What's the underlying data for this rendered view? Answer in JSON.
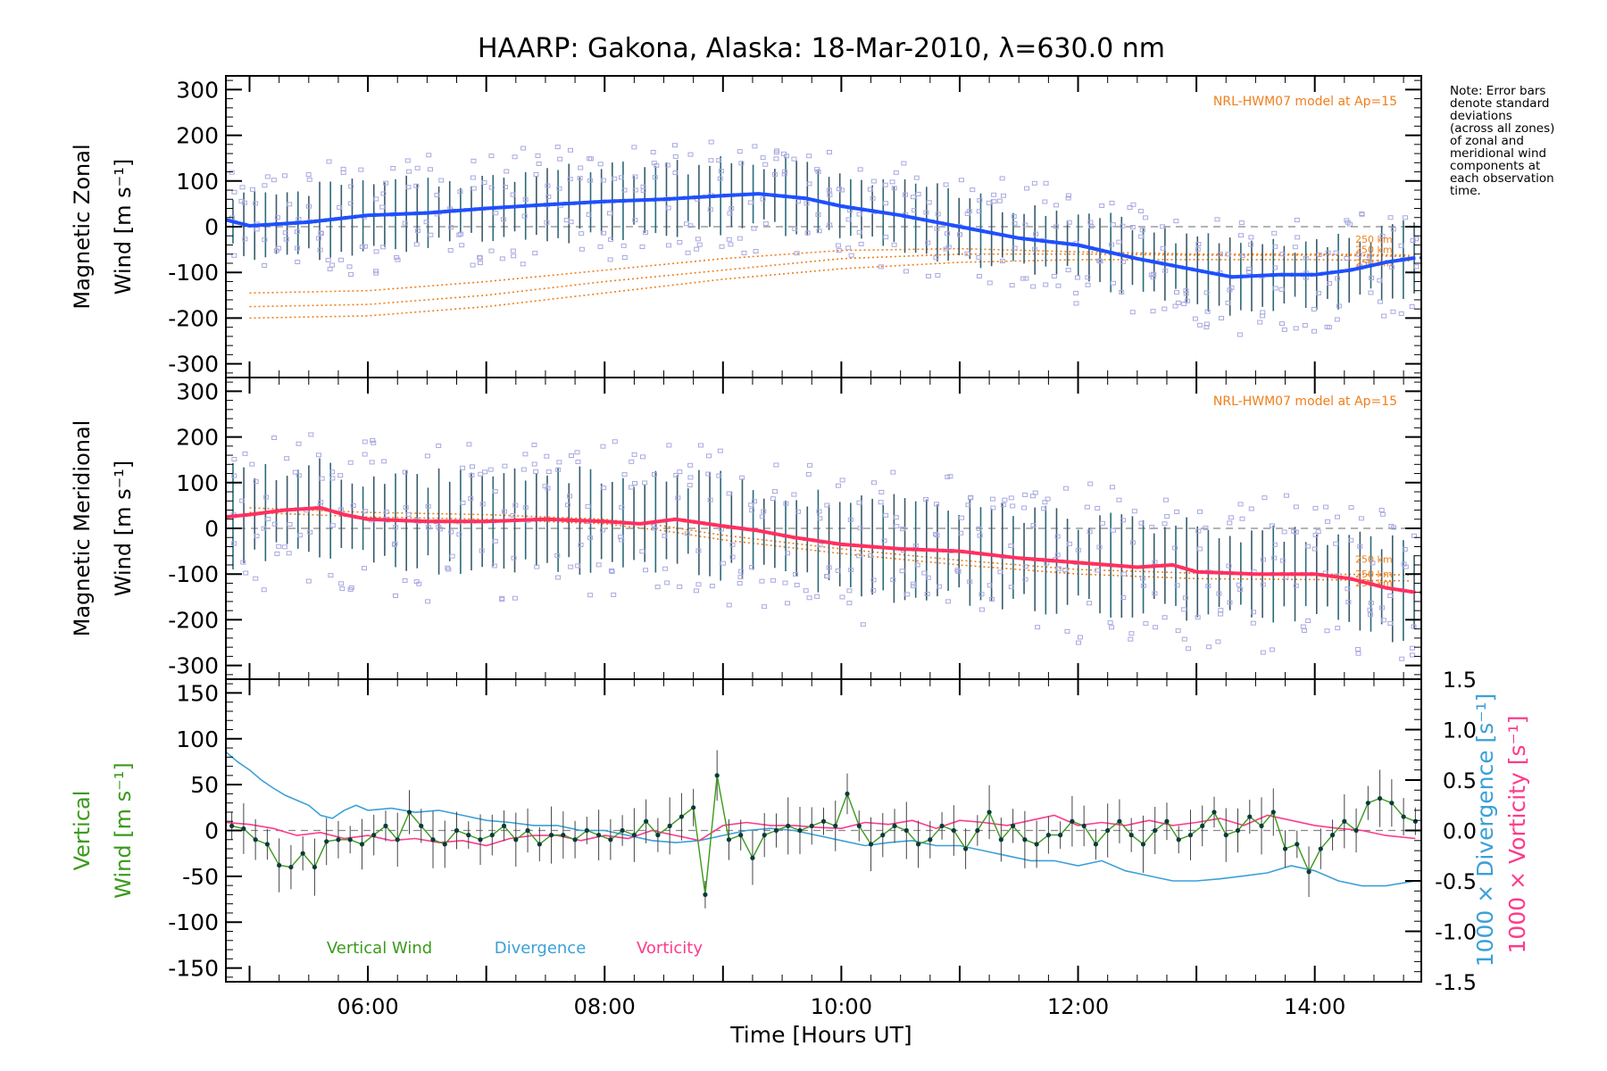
{
  "title": "HAARP: Gakona,  Alaska: 18-Mar-2010, λ=630.0 nm",
  "note": "Note: Error bars\ndenote standard\ndeviations\n(across all zones)\nof zonal and\nmeridional wind\ncomponents at\neach observation\ntime.",
  "xlabel": "Time [Hours UT]",
  "xticks": [
    "06:00",
    "08:00",
    "10:00",
    "12:00",
    "14:00"
  ],
  "model_label": "NRL-HWM07 model at Ap=15",
  "colors": {
    "zonal_line": "#1f4fff",
    "meridional_line": "#ff3060",
    "model": "#f07f1a",
    "scatter": "#a8a8e0",
    "vertical": "#3a9a1a",
    "divergence": "#3aa0d8",
    "vorticity": "#ff3a8a",
    "errorbar": "#444444"
  },
  "chart_data": [
    {
      "type": "line",
      "panel": "zonal",
      "ylabel_line1": "Magnetic Zonal",
      "ylabel_line2": "Wind [m s⁻¹]",
      "ylim": [
        -330,
        330
      ],
      "yticks": [
        300,
        200,
        100,
        0,
        -100,
        -200,
        -300
      ],
      "xlim": [
        4.8,
        14.9
      ],
      "model_altitude_labels": [
        "250 km",
        "250 km",
        "250 km"
      ],
      "series": [
        {
          "name": "Magnetic Zonal Wind",
          "x": [
            4.8,
            5.0,
            5.2,
            5.5,
            6.0,
            6.5,
            7.0,
            7.5,
            8.0,
            8.5,
            9.0,
            9.3,
            9.7,
            10.0,
            10.5,
            11.0,
            11.5,
            12.0,
            12.5,
            13.0,
            13.3,
            13.7,
            14.0,
            14.3,
            14.6,
            14.85
          ],
          "values": [
            15,
            2,
            5,
            10,
            25,
            30,
            40,
            48,
            55,
            60,
            68,
            72,
            62,
            45,
            25,
            0,
            -25,
            -40,
            -70,
            -95,
            -110,
            -105,
            -105,
            -95,
            -78,
            -68
          ]
        },
        {
          "name": "model upper",
          "x": [
            5.0,
            6.0,
            7.0,
            8.0,
            9.0,
            10.0,
            11.0,
            12.0,
            13.0,
            14.0,
            14.8
          ],
          "values": [
            -145,
            -140,
            -120,
            -95,
            -70,
            -52,
            -48,
            -55,
            -60,
            -60,
            -62
          ]
        },
        {
          "name": "model middle",
          "x": [
            5.0,
            6.0,
            7.0,
            8.0,
            9.0,
            10.0,
            11.0,
            12.0,
            13.0,
            14.0,
            14.8
          ],
          "values": [
            -175,
            -170,
            -150,
            -120,
            -95,
            -70,
            -60,
            -60,
            -62,
            -62,
            -65
          ]
        },
        {
          "name": "model lower",
          "x": [
            5.0,
            6.0,
            7.0,
            8.0,
            9.0,
            10.0,
            11.0,
            12.0,
            13.0,
            14.0,
            14.8
          ],
          "values": [
            -200,
            -195,
            -175,
            -145,
            -115,
            -92,
            -78,
            -72,
            -72,
            -72,
            -75
          ]
        }
      ],
      "errorbar_halfwidth": 80
    },
    {
      "type": "line",
      "panel": "meridional",
      "ylabel_line1": "Magnetic Meridional",
      "ylabel_line2": "Wind [m s⁻¹]",
      "ylim": [
        -330,
        330
      ],
      "yticks": [
        300,
        200,
        100,
        0,
        -100,
        -200,
        -300
      ],
      "xlim": [
        4.8,
        14.9
      ],
      "model_altitude_labels": [
        "250 km",
        "250 km",
        "250 km"
      ],
      "series": [
        {
          "name": "Magnetic Meridional Wind",
          "x": [
            4.8,
            5.0,
            5.3,
            5.6,
            5.8,
            6.0,
            6.5,
            7.0,
            7.5,
            8.0,
            8.3,
            8.6,
            9.0,
            9.3,
            9.6,
            10.0,
            10.5,
            11.0,
            11.5,
            12.0,
            12.5,
            12.8,
            13.0,
            13.5,
            14.0,
            14.3,
            14.6,
            14.85
          ],
          "values": [
            25,
            30,
            40,
            45,
            30,
            20,
            15,
            15,
            20,
            15,
            10,
            20,
            5,
            -5,
            -20,
            -35,
            -45,
            -50,
            -65,
            -75,
            -85,
            -80,
            -95,
            -100,
            -100,
            -110,
            -130,
            -140
          ]
        },
        {
          "name": "model upper",
          "x": [
            5.0,
            6.0,
            7.0,
            8.0,
            8.5,
            9.0,
            10.0,
            11.0,
            12.0,
            13.0,
            14.0,
            14.8
          ],
          "values": [
            45,
            35,
            30,
            20,
            5,
            -15,
            -45,
            -70,
            -90,
            -98,
            -100,
            -102
          ]
        },
        {
          "name": "model lower",
          "x": [
            5.0,
            6.0,
            7.0,
            8.0,
            8.5,
            9.0,
            10.0,
            11.0,
            12.0,
            13.0,
            14.0,
            14.8
          ],
          "values": [
            35,
            25,
            20,
            10,
            -5,
            -25,
            -55,
            -80,
            -100,
            -110,
            -112,
            -115
          ]
        }
      ],
      "errorbar_halfwidth": 110
    },
    {
      "type": "line",
      "panel": "vertical",
      "ylabel_line1": "Vertical",
      "ylabel_line2": "Wind [m s⁻¹]",
      "ylim": [
        -165,
        165
      ],
      "yticks": [
        150,
        100,
        50,
        0,
        -50,
        -100,
        -150
      ],
      "xlim": [
        4.8,
        14.9
      ],
      "right_axis_ylim": [
        -1.5,
        1.5
      ],
      "right_axis_ticks": [
        "1.5",
        "1.0",
        "0.5",
        "0.0",
        "-0.5",
        "-1.0",
        "-1.5"
      ],
      "right_label_divergence": "1000 × Divergence [s⁻¹]",
      "right_label_vorticity": "1000 × Vorticity [s⁻¹]",
      "legend": [
        "Vertical Wind",
        "Divergence",
        "Vorticity"
      ],
      "series": [
        {
          "name": "Vertical Wind",
          "x": [
            4.85,
            4.95,
            5.05,
            5.15,
            5.25,
            5.35,
            5.45,
            5.55,
            5.65,
            5.75,
            5.85,
            5.95,
            6.05,
            6.15,
            6.25,
            6.35,
            6.45,
            6.55,
            6.65,
            6.75,
            6.85,
            6.95,
            7.05,
            7.15,
            7.25,
            7.35,
            7.45,
            7.55,
            7.65,
            7.75,
            7.85,
            7.95,
            8.05,
            8.15,
            8.25,
            8.35,
            8.45,
            8.55,
            8.65,
            8.75,
            8.85,
            8.95,
            9.05,
            9.15,
            9.25,
            9.35,
            9.45,
            9.55,
            9.65,
            9.75,
            9.85,
            9.95,
            10.05,
            10.15,
            10.25,
            10.35,
            10.45,
            10.55,
            10.65,
            10.75,
            10.85,
            10.95,
            11.05,
            11.15,
            11.25,
            11.35,
            11.45,
            11.55,
            11.65,
            11.75,
            11.85,
            11.95,
            12.05,
            12.15,
            12.25,
            12.35,
            12.45,
            12.55,
            12.65,
            12.75,
            12.85,
            12.95,
            13.05,
            13.15,
            13.25,
            13.35,
            13.45,
            13.55,
            13.65,
            13.75,
            13.85,
            13.95,
            14.05,
            14.15,
            14.25,
            14.35,
            14.45,
            14.55,
            14.65,
            14.75,
            14.85
          ],
          "values": [
            5,
            2,
            -10,
            -15,
            -38,
            -40,
            -25,
            -40,
            -12,
            -10,
            -10,
            -15,
            -5,
            5,
            -10,
            20,
            5,
            -10,
            -15,
            0,
            -5,
            -10,
            -5,
            5,
            -10,
            0,
            -15,
            -5,
            -5,
            -10,
            0,
            -5,
            -10,
            0,
            -5,
            10,
            -5,
            5,
            15,
            25,
            -70,
            60,
            -10,
            -5,
            -30,
            -5,
            0,
            5,
            0,
            5,
            10,
            5,
            40,
            5,
            -15,
            -5,
            5,
            0,
            -15,
            -10,
            5,
            0,
            -20,
            0,
            20,
            -10,
            5,
            -10,
            -15,
            -5,
            -5,
            10,
            5,
            -15,
            0,
            10,
            -5,
            -15,
            0,
            10,
            -10,
            -5,
            5,
            20,
            -5,
            0,
            15,
            5,
            20,
            -20,
            -15,
            -45,
            -20,
            -5,
            10,
            0,
            30,
            35,
            30,
            15,
            10
          ]
        },
        {
          "name": "Divergence",
          "x": [
            4.8,
            4.9,
            5.0,
            5.1,
            5.2,
            5.3,
            5.4,
            5.5,
            5.6,
            5.7,
            5.8,
            5.9,
            6.0,
            6.2,
            6.4,
            6.6,
            6.8,
            7.0,
            7.2,
            7.4,
            7.6,
            7.8,
            8.0,
            8.2,
            8.4,
            8.6,
            8.8,
            9.0,
            9.2,
            9.4,
            9.6,
            9.8,
            10.0,
            10.2,
            10.4,
            10.6,
            10.8,
            11.0,
            11.2,
            11.4,
            11.6,
            11.8,
            12.0,
            12.2,
            12.4,
            12.6,
            12.8,
            13.0,
            13.2,
            13.4,
            13.6,
            13.8,
            14.0,
            14.2,
            14.4,
            14.6,
            14.85
          ],
          "values": [
            0.78,
            0.68,
            0.6,
            0.5,
            0.42,
            0.35,
            0.3,
            0.25,
            0.15,
            0.12,
            0.2,
            0.25,
            0.2,
            0.22,
            0.18,
            0.2,
            0.15,
            0.1,
            0.08,
            0.05,
            0.05,
            0.0,
            0.0,
            -0.05,
            -0.1,
            -0.12,
            -0.1,
            -0.05,
            0.0,
            0.02,
            0.0,
            -0.05,
            -0.1,
            -0.15,
            -0.12,
            -0.1,
            -0.15,
            -0.15,
            -0.2,
            -0.25,
            -0.3,
            -0.3,
            -0.35,
            -0.3,
            -0.4,
            -0.45,
            -0.5,
            -0.5,
            -0.48,
            -0.45,
            -0.42,
            -0.35,
            -0.4,
            -0.5,
            -0.55,
            -0.55,
            -0.5
          ]
        },
        {
          "name": "Vorticity",
          "x": [
            4.8,
            5.0,
            5.2,
            5.4,
            5.6,
            5.8,
            6.0,
            6.2,
            6.4,
            6.6,
            6.8,
            7.0,
            7.2,
            7.4,
            7.6,
            7.8,
            8.0,
            8.2,
            8.4,
            8.6,
            8.8,
            9.0,
            9.2,
            9.4,
            9.6,
            9.8,
            10.0,
            10.2,
            10.4,
            10.6,
            10.8,
            11.0,
            11.2,
            11.4,
            11.6,
            11.8,
            12.0,
            12.2,
            12.4,
            12.6,
            12.8,
            13.0,
            13.2,
            13.4,
            13.6,
            13.8,
            14.0,
            14.2,
            14.4,
            14.6,
            14.85
          ],
          "values": [
            0.08,
            0.06,
            0.02,
            -0.05,
            -0.02,
            -0.08,
            -0.05,
            -0.1,
            -0.08,
            -0.12,
            -0.1,
            -0.15,
            -0.08,
            -0.05,
            -0.05,
            -0.1,
            -0.05,
            -0.08,
            0.0,
            -0.05,
            -0.1,
            0.05,
            0.08,
            0.05,
            0.05,
            0.03,
            0.02,
            0.08,
            0.06,
            0.1,
            0.02,
            0.1,
            0.08,
            0.05,
            0.1,
            0.15,
            0.05,
            0.08,
            0.05,
            0.1,
            0.05,
            0.08,
            0.12,
            0.05,
            0.15,
            0.1,
            0.05,
            0.02,
            0.0,
            -0.05,
            -0.08
          ]
        }
      ],
      "errorbar_halfwidth": 30
    }
  ]
}
